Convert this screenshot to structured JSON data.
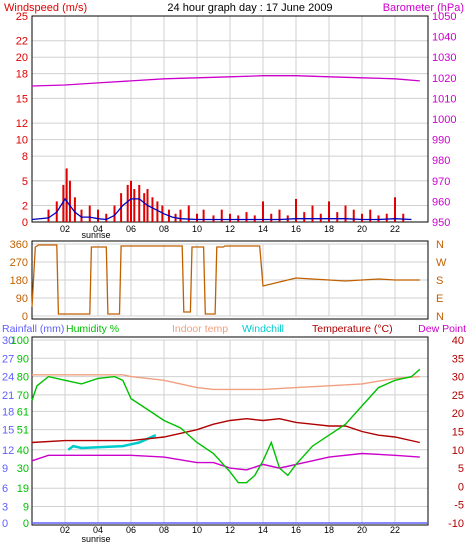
{
  "header": {
    "title": "24 hour graph day : 17 June 2009",
    "left_label": "Windspeed (m/s)",
    "right_label": "Barometer (hPa)"
  },
  "bottom_header": {
    "rainfall": "Rainfall (mm)",
    "humidity": "Humidity %",
    "indoor": "Indoor temp",
    "windchill": "Windchill",
    "temperature": "Temperature (°C)",
    "dewpoint": "Dew Point"
  },
  "sunrise_label": "sunrise",
  "x_ticks": [
    "02",
    "04",
    "06",
    "08",
    "10",
    "12",
    "14",
    "16",
    "18",
    "20",
    "22"
  ],
  "colors": {
    "windspeed": "#e00000",
    "windavg": "#0000c0",
    "barometer": "#cc00cc",
    "direction": "#c06000",
    "humidity": "#00c000",
    "indoor": "#f0a080",
    "windchill": "#00cccc",
    "temperature": "#b00000",
    "dewpoint": "#cc00cc",
    "rainfall": "#6060ff",
    "right_axis": "#b00000",
    "grid": "#d0d0d0"
  },
  "chart_data": [
    {
      "type": "line",
      "title": "24 hour graph day : 17 June 2009",
      "ylabel": "Windspeed (m/s)",
      "y2label": "Barometer (hPa)",
      "xlim": [
        0,
        24
      ],
      "ylim": [
        0,
        25
      ],
      "y2lim": [
        950,
        1050
      ],
      "y_ticks": [
        0,
        2,
        5,
        8,
        10,
        12,
        15,
        18,
        20,
        22,
        25
      ],
      "y2_ticks": [
        950,
        960,
        970,
        980,
        990,
        1000,
        1010,
        1020,
        1030,
        1040,
        1050
      ],
      "grid": true,
      "series": [
        {
          "name": "Barometer",
          "axis": "right",
          "color": "#cc00cc",
          "x": [
            0,
            2,
            4,
            6,
            8,
            10,
            12,
            14,
            16,
            18,
            20,
            22,
            23.5
          ],
          "y": [
            1016,
            1016.5,
            1017.5,
            1018.5,
            1019.5,
            1020,
            1020.5,
            1021,
            1021,
            1020.5,
            1020,
            1019.5,
            1018.5
          ]
        },
        {
          "name": "Wind gust",
          "axis": "left",
          "kind": "bars",
          "color": "#e00000",
          "x": [
            1.0,
            1.5,
            1.9,
            2.1,
            2.3,
            2.6,
            3.0,
            3.5,
            4.0,
            4.5,
            5.0,
            5.4,
            5.8,
            6.0,
            6.2,
            6.5,
            6.8,
            7.0,
            7.3,
            7.6,
            7.9,
            8.3,
            8.7,
            9.0,
            9.5,
            10.0,
            10.4,
            11.0,
            11.5,
            12.0,
            12.5,
            13.0,
            13.5,
            14.0,
            14.5,
            15.0,
            15.5,
            16.0,
            16.5,
            17.0,
            17.5,
            18.0,
            18.5,
            19.0,
            19.5,
            20.0,
            20.5,
            21.0,
            21.5,
            22.0,
            22.5
          ],
          "y": [
            1.5,
            2.5,
            4.5,
            6.5,
            5.0,
            3.0,
            1.5,
            2.0,
            1.5,
            1.0,
            2.0,
            3.5,
            4.5,
            5.0,
            4.0,
            4.5,
            3.5,
            4.0,
            3.0,
            2.5,
            2.0,
            1.5,
            1.0,
            1.5,
            2.0,
            1.0,
            1.5,
            0.8,
            1.5,
            1.0,
            0.8,
            1.2,
            0.8,
            2.5,
            1.0,
            1.5,
            0.8,
            2.8,
            1.2,
            2.0,
            1.0,
            2.5,
            1.2,
            2.0,
            1.5,
            1.0,
            1.5,
            0.8,
            1.0,
            3.0,
            1.0
          ]
        },
        {
          "name": "Wind avg",
          "axis": "left",
          "color": "#0000c0",
          "x": [
            0,
            1,
            1.5,
            2,
            2.3,
            2.6,
            3,
            3.5,
            4,
            4.5,
            5,
            5.5,
            6,
            6.5,
            7,
            7.5,
            8,
            8.5,
            9,
            10,
            11,
            12,
            13,
            14,
            15,
            16,
            17,
            18,
            19,
            20,
            21,
            22,
            23
          ],
          "y": [
            0.3,
            0.5,
            1.2,
            2.8,
            2.0,
            1.2,
            0.6,
            0.6,
            0.4,
            0.3,
            0.8,
            2.0,
            2.8,
            2.8,
            2.0,
            1.5,
            1.0,
            0.6,
            0.4,
            0.3,
            0.3,
            0.3,
            0.3,
            0.3,
            0.3,
            0.4,
            0.4,
            0.4,
            0.4,
            0.3,
            0.3,
            0.4,
            0.3
          ]
        }
      ]
    },
    {
      "type": "line",
      "ylim": [
        0,
        360
      ],
      "xlim": [
        0,
        24
      ],
      "y_ticks": [
        0,
        90,
        180,
        270,
        360
      ],
      "y2_labels": [
        "N",
        "E",
        "S",
        "W",
        "N"
      ],
      "grid": true,
      "series": [
        {
          "name": "Wind direction",
          "color": "#c06000",
          "x": [
            0,
            0.2,
            0.4,
            1.5,
            1.6,
            3.5,
            3.6,
            4.5,
            4.6,
            5.3,
            5.4,
            9.1,
            9.2,
            9.6,
            9.7,
            10.4,
            10.5,
            11.1,
            11.2,
            11.6,
            11.7,
            13.8,
            14.0,
            15.0,
            16.0,
            17.0,
            18.0,
            19.0,
            20.0,
            21.0,
            22.0,
            23.5
          ],
          "y": [
            45,
            345,
            355,
            355,
            10,
            10,
            345,
            345,
            10,
            10,
            350,
            350,
            20,
            20,
            345,
            345,
            10,
            10,
            345,
            345,
            350,
            350,
            150,
            170,
            190,
            185,
            180,
            175,
            180,
            185,
            180,
            180
          ]
        }
      ]
    },
    {
      "type": "line",
      "xlim": [
        0,
        24
      ],
      "ylim": [
        0,
        100
      ],
      "y_ticks": [
        0,
        9,
        19,
        30,
        40,
        51,
        61,
        70,
        80,
        90,
        100
      ],
      "y_ticks_rain": [
        0,
        3,
        6,
        9,
        12,
        15,
        18,
        21,
        24,
        27,
        30
      ],
      "y2lim": [
        -10,
        40
      ],
      "y2_ticks": [
        -10,
        -5,
        0,
        5,
        10,
        15,
        20,
        25,
        30,
        35,
        40
      ],
      "grid": true,
      "series": [
        {
          "name": "Humidity",
          "axis": "humidity",
          "color": "#00c000",
          "x": [
            0,
            0.3,
            1,
            2,
            3,
            4,
            5,
            5.5,
            6,
            7,
            8,
            9,
            10,
            11,
            12,
            12.5,
            13,
            13.5,
            14,
            14.5,
            15,
            15.5,
            16,
            17,
            18,
            19,
            20,
            21,
            22,
            23,
            23.5
          ],
          "y": [
            67,
            75,
            80,
            78,
            76,
            79,
            80,
            78,
            68,
            62,
            56,
            52,
            44,
            38,
            28,
            22,
            22,
            26,
            34,
            44,
            30,
            26,
            32,
            42,
            48,
            54,
            64,
            74,
            78,
            80,
            84
          ]
        },
        {
          "name": "Indoor temp",
          "axis": "temp",
          "color": "#f0a080",
          "x": [
            0,
            2,
            4,
            5.5,
            6,
            8,
            9,
            10,
            11,
            12,
            14,
            16,
            18,
            20,
            22,
            23.5
          ],
          "y": [
            30.5,
            30.5,
            30.5,
            30.5,
            30,
            29,
            28,
            27,
            26.5,
            26.5,
            26.5,
            27,
            27.5,
            28,
            29.5,
            30
          ]
        },
        {
          "name": "Temperature",
          "axis": "temp",
          "color": "#b00000",
          "x": [
            0,
            2,
            4,
            6,
            8,
            10,
            11,
            12,
            13,
            14,
            15,
            16,
            17,
            18,
            19,
            20,
            21,
            22,
            23.5
          ],
          "y": [
            12,
            12.5,
            12.5,
            12.5,
            13.5,
            15.5,
            17,
            18,
            18.5,
            18,
            18.5,
            17.5,
            17,
            16.5,
            16.5,
            15,
            14,
            13.5,
            12
          ]
        },
        {
          "name": "Dew Point",
          "axis": "temp",
          "color": "#cc00cc",
          "x": [
            0,
            1,
            2,
            4,
            6,
            8,
            10,
            11,
            12,
            13,
            14,
            15,
            16,
            17,
            18,
            20,
            22,
            23.5
          ],
          "y": [
            7,
            8.5,
            8.5,
            8.5,
            8.5,
            8,
            6.5,
            6.5,
            5,
            4.5,
            6,
            5,
            6,
            7,
            8,
            9,
            8.5,
            8
          ]
        },
        {
          "name": "Windchill",
          "axis": "temp",
          "color": "#00cccc",
          "x": [
            2.2,
            2.5,
            3.0,
            5.5,
            6.0,
            6.5,
            7.0,
            7.5
          ],
          "y": [
            10,
            11,
            10.5,
            11,
            11.5,
            12,
            13,
            14
          ]
        },
        {
          "name": "Rainfall",
          "axis": "rain",
          "color": "#6060ff",
          "x": [
            0,
            24
          ],
          "y": [
            0,
            0
          ]
        }
      ]
    }
  ]
}
